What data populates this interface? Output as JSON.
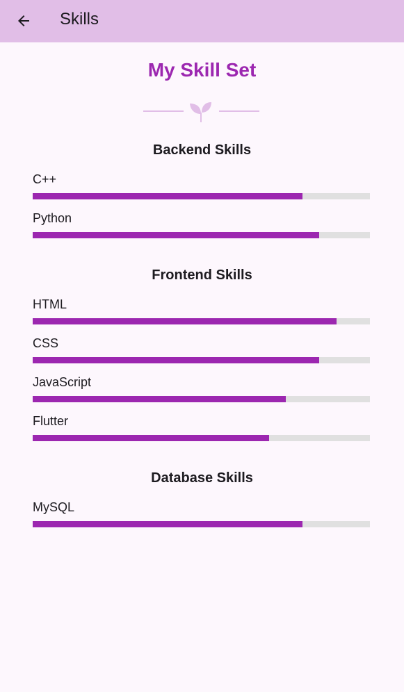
{
  "appbar": {
    "title": "Skills",
    "back_icon": "arrow-left-icon",
    "background": "#e1bee7"
  },
  "header": {
    "title": "My Skill Set",
    "title_color": "#9c27b0",
    "divider_icon": "sprout-icon",
    "divider_color": "#e1bee7"
  },
  "colors": {
    "bar_fill": "#9c27b0",
    "bar_track": "#e0e0e0",
    "background": "#fdf7fd"
  },
  "sections": [
    {
      "title": "Backend Skills",
      "skills": [
        {
          "name": "C++",
          "level": 0.8
        },
        {
          "name": "Python",
          "level": 0.85
        }
      ]
    },
    {
      "title": "Frontend Skills",
      "skills": [
        {
          "name": "HTML",
          "level": 0.9
        },
        {
          "name": "CSS",
          "level": 0.85
        },
        {
          "name": "JavaScript",
          "level": 0.75
        },
        {
          "name": "Flutter",
          "level": 0.7
        }
      ]
    },
    {
      "title": "Database Skills",
      "skills": [
        {
          "name": "MySQL",
          "level": 0.8
        }
      ]
    }
  ]
}
